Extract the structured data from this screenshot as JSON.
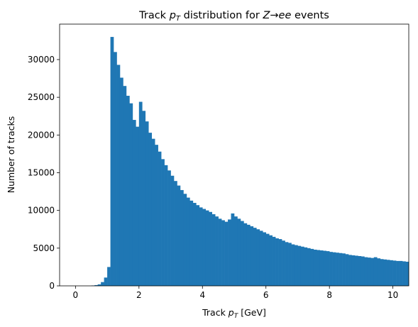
{
  "chart_data": {
    "type": "bar",
    "title": {
      "prefix": "Track ",
      "var": "p",
      "sub": "T",
      "mid": " distribution for ",
      "z": "Z",
      "arrow": "→",
      "ee": "ee",
      "suffix": " events"
    },
    "xlabel": {
      "prefix": "Track ",
      "var": "p",
      "sub": "T",
      "suffix": " [GeV]"
    },
    "ylabel": "Number of tracks",
    "xlim": [
      -0.5,
      10.5
    ],
    "ylim": [
      0,
      34700
    ],
    "xticks": [
      0,
      2,
      4,
      6,
      8,
      10
    ],
    "xtick_labels": [
      "0",
      "2",
      "4",
      "6",
      "8",
      "10"
    ],
    "yticks": [
      0,
      5000,
      10000,
      15000,
      20000,
      25000,
      30000
    ],
    "ytick_labels": [
      "0",
      "5000",
      "10000",
      "15000",
      "20000",
      "25000",
      "30000"
    ],
    "grid": false,
    "color": "#1f77b4",
    "bin_start": 0,
    "bin_width": 0.1,
    "values": [
      0,
      0,
      0,
      0,
      0,
      50,
      100,
      200,
      500,
      1100,
      2500,
      33000,
      31000,
      29300,
      27600,
      26500,
      25200,
      24200,
      22000,
      21100,
      24400,
      23200,
      21800,
      20300,
      19500,
      18700,
      17800,
      16800,
      16000,
      15300,
      14600,
      13900,
      13300,
      12700,
      12200,
      11700,
      11300,
      11000,
      10700,
      10400,
      10200,
      10000,
      9800,
      9500,
      9200,
      8900,
      8700,
      8500,
      8800,
      9600,
      9200,
      8900,
      8600,
      8300,
      8100,
      7900,
      7700,
      7500,
      7300,
      7100,
      6900,
      6700,
      6500,
      6300,
      6200,
      6000,
      5800,
      5700,
      5500,
      5400,
      5300,
      5200,
      5100,
      5000,
      4900,
      4800,
      4750,
      4700,
      4650,
      4600,
      4500,
      4450,
      4400,
      4350,
      4300,
      4200,
      4100,
      4050,
      4000,
      3950,
      3900,
      3800,
      3750,
      3700,
      3800,
      3650,
      3550,
      3500,
      3450,
      3400,
      3350,
      3300,
      3300,
      3250,
      3200
    ]
  }
}
